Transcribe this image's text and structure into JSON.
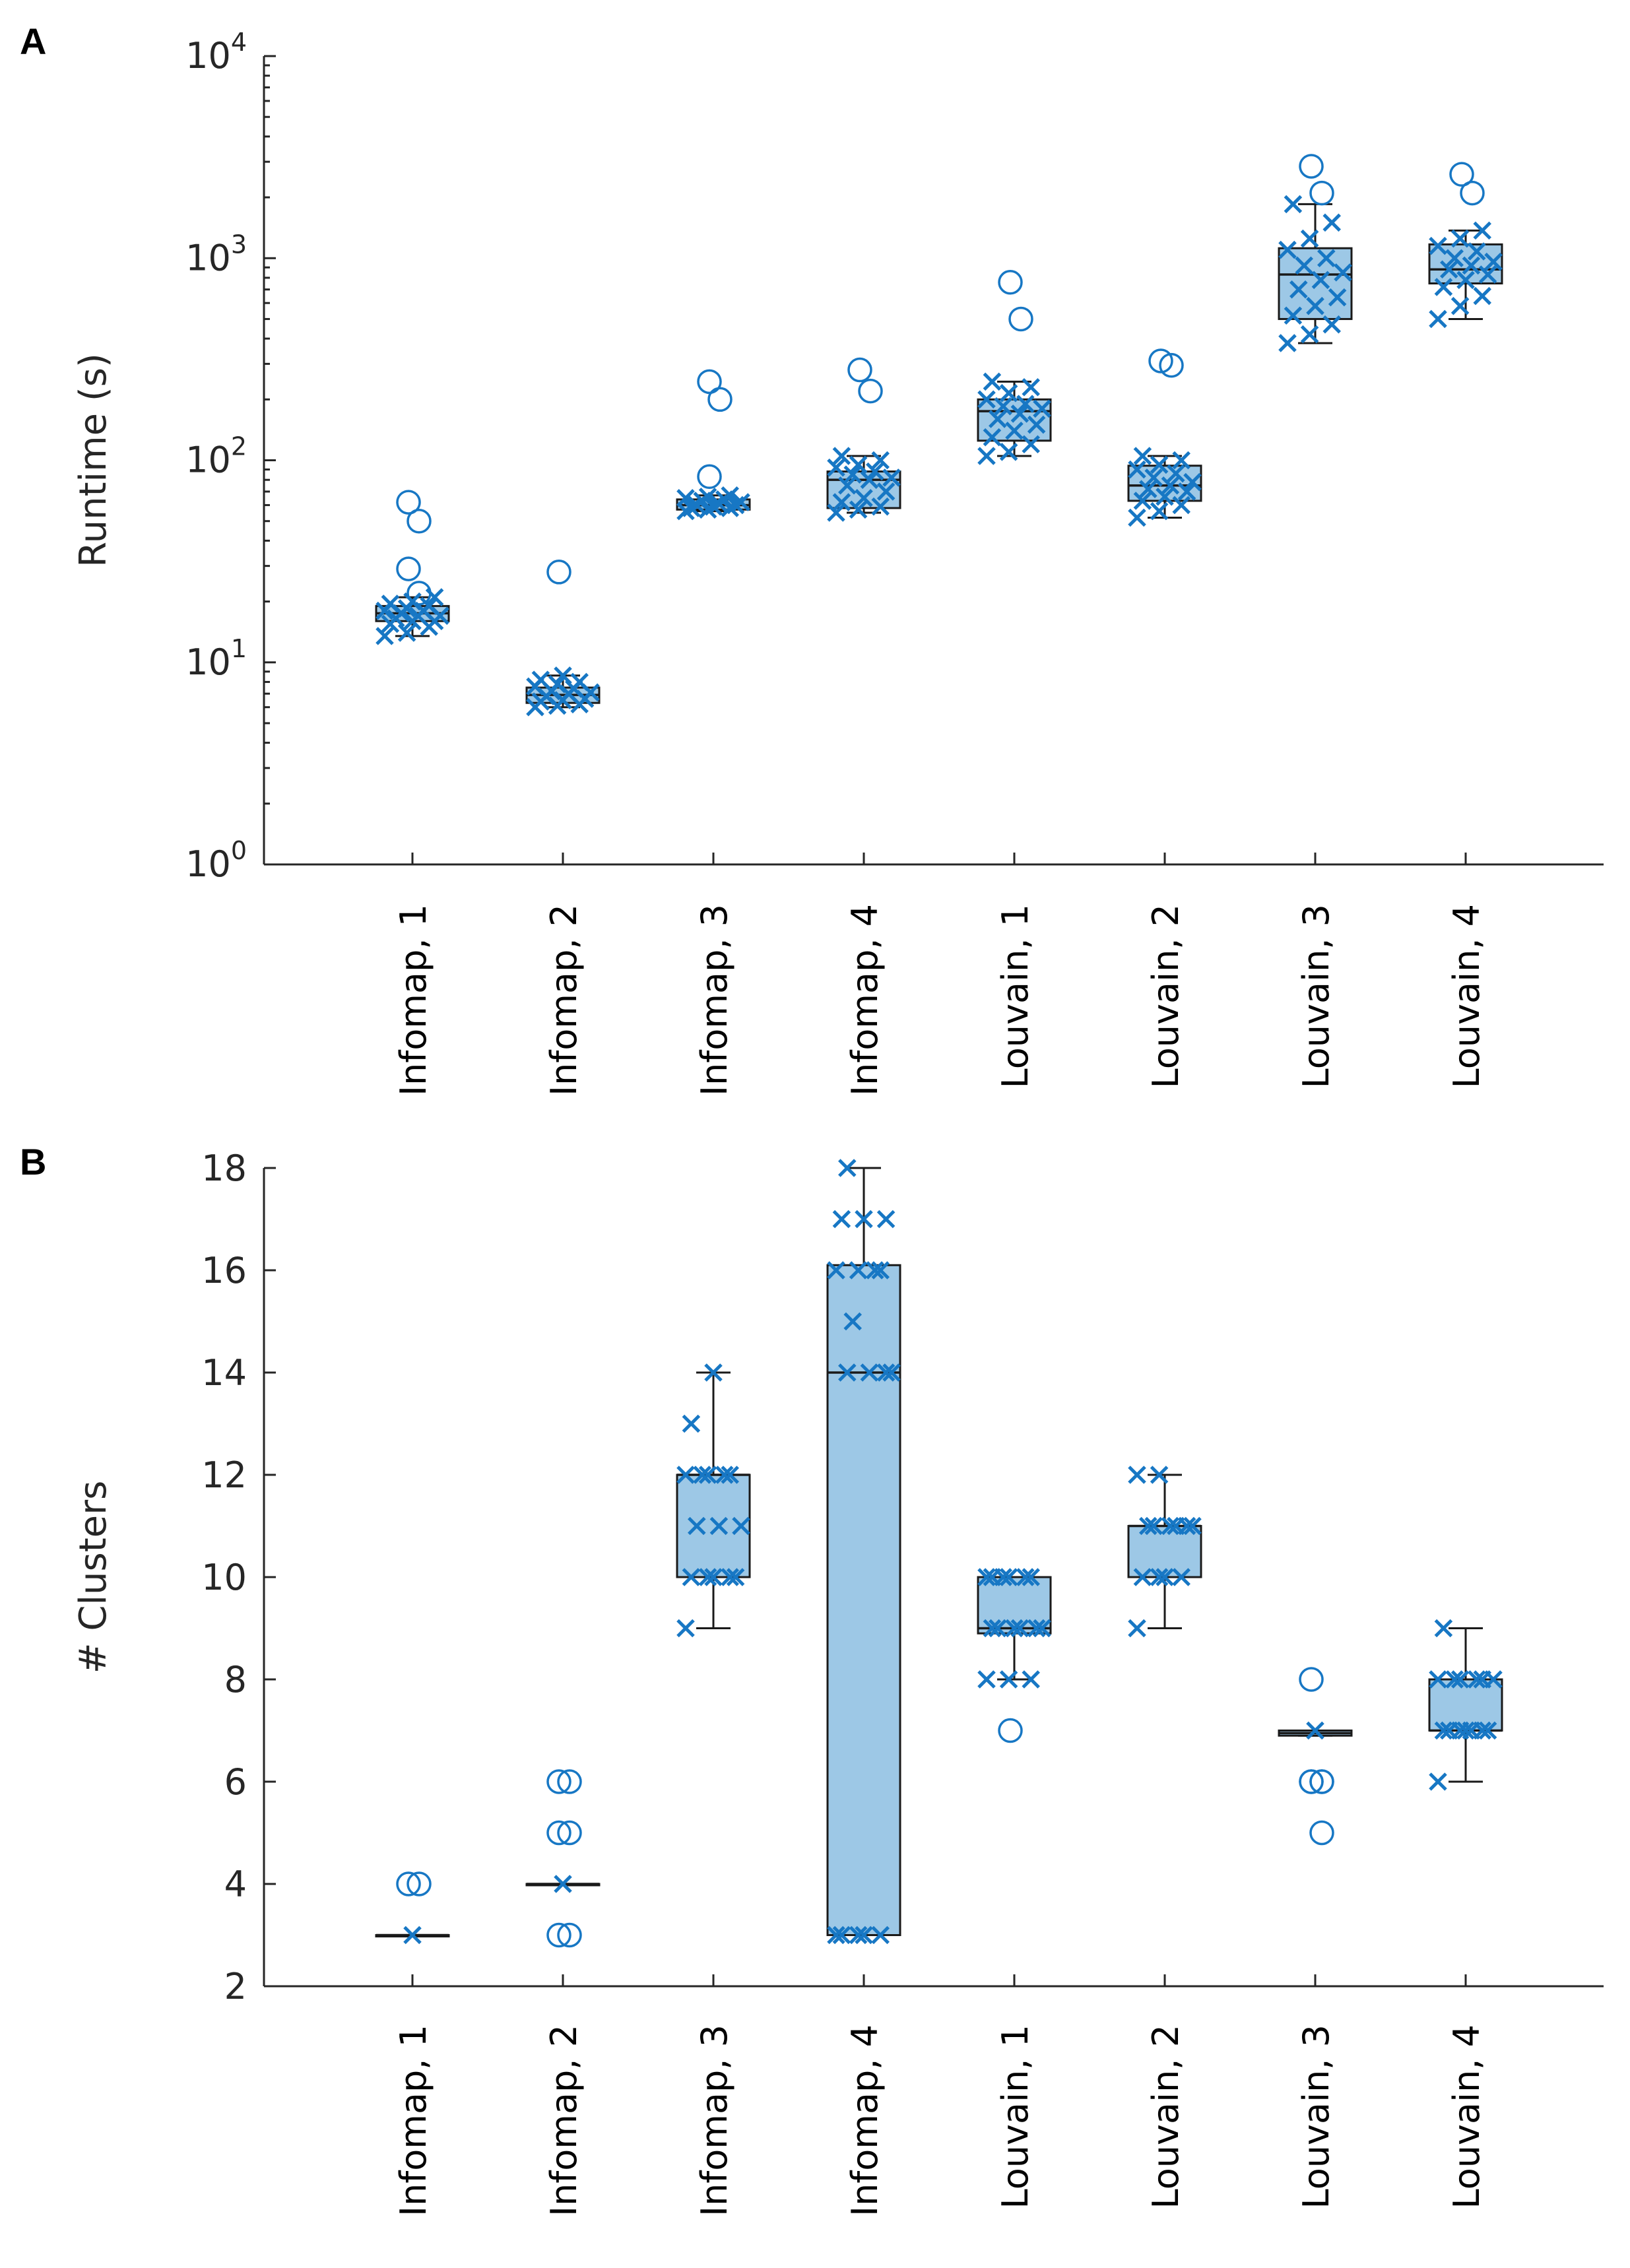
{
  "figure": {
    "colors": {
      "accent": "#1777c4",
      "box_fill": "#9dc8e6",
      "axis": "#262626"
    }
  },
  "chart_data": [
    {
      "panel": "A",
      "type": "box",
      "ylabel": "Runtime (s)",
      "yscale": "log",
      "ylim": [
        1,
        10000
      ],
      "yticks": [
        {
          "value": 1,
          "base": "10",
          "exp": "0"
        },
        {
          "value": 10,
          "base": "10",
          "exp": "1"
        },
        {
          "value": 100,
          "base": "10",
          "exp": "2"
        },
        {
          "value": 1000,
          "base": "10",
          "exp": "3"
        },
        {
          "value": 10000,
          "base": "10",
          "exp": "4"
        }
      ],
      "categories": [
        "Infomap, 1",
        "Infomap, 2",
        "Infomap, 3",
        "Infomap, 4",
        "Louvain, 1",
        "Louvain, 2",
        "Louvain, 3",
        "Louvain, 4"
      ],
      "boxes": [
        {
          "q1": 16,
          "median": 17.5,
          "q3": 19,
          "whisker_low": 13.5,
          "whisker_high": 21,
          "outliers": [
            62,
            50,
            29,
            22
          ],
          "points": [
            13.5,
            14,
            15,
            15.5,
            16,
            16,
            16.5,
            17,
            17,
            17.5,
            18,
            18,
            18.5,
            19,
            19.5,
            20,
            21
          ]
        },
        {
          "q1": 6.3,
          "median": 6.9,
          "q3": 7.5,
          "whisker_low": 6,
          "whisker_high": 8.6,
          "outliers": [
            28
          ],
          "points": [
            6,
            6.1,
            6.2,
            6.4,
            6.5,
            6.6,
            6.8,
            7,
            7.1,
            7.2,
            7.4,
            7.6,
            7.8,
            8,
            8.2,
            8.6
          ]
        },
        {
          "q1": 57,
          "median": 60,
          "q3": 64,
          "whisker_low": 56,
          "whisker_high": 67,
          "outliers": [
            245,
            200,
            83
          ],
          "points": [
            56,
            57,
            58,
            58,
            59,
            60,
            60,
            61,
            62,
            63,
            64,
            65,
            66,
            67
          ]
        },
        {
          "q1": 58,
          "median": 80,
          "q3": 88,
          "whisker_low": 55,
          "whisker_high": 105,
          "outliers": [
            280,
            220
          ],
          "points": [
            55,
            57,
            59,
            62,
            65,
            70,
            75,
            80,
            82,
            85,
            88,
            92,
            95,
            100,
            105
          ]
        },
        {
          "q1": 125,
          "median": 175,
          "q3": 200,
          "whisker_low": 105,
          "whisker_high": 245,
          "outliers": [
            760,
            500
          ],
          "points": [
            105,
            110,
            120,
            130,
            140,
            150,
            160,
            170,
            180,
            185,
            190,
            200,
            215,
            230,
            245
          ]
        },
        {
          "q1": 63,
          "median": 75,
          "q3": 94,
          "whisker_low": 52,
          "whisker_high": 105,
          "outliers": [
            310,
            295
          ],
          "points": [
            52,
            56,
            60,
            63,
            66,
            70,
            72,
            75,
            78,
            82,
            86,
            90,
            95,
            100,
            105
          ]
        },
        {
          "q1": 500,
          "median": 830,
          "q3": 1120,
          "whisker_low": 380,
          "whisker_high": 1850,
          "outliers": [
            2850,
            2100
          ],
          "points": [
            380,
            420,
            470,
            520,
            580,
            640,
            700,
            780,
            850,
            920,
            1000,
            1100,
            1250,
            1500,
            1850
          ]
        },
        {
          "q1": 750,
          "median": 880,
          "q3": 1170,
          "whisker_low": 500,
          "whisker_high": 1370,
          "outliers": [
            2600,
            2100
          ],
          "points": [
            500,
            580,
            650,
            720,
            780,
            830,
            880,
            920,
            960,
            1000,
            1080,
            1150,
            1250,
            1370
          ]
        }
      ]
    },
    {
      "panel": "B",
      "type": "box",
      "ylabel": "# Clusters",
      "yscale": "linear",
      "ylim": [
        2,
        18
      ],
      "yticks": [
        {
          "value": 2,
          "label": "2"
        },
        {
          "value": 4,
          "label": "4"
        },
        {
          "value": 6,
          "label": "6"
        },
        {
          "value": 8,
          "label": "8"
        },
        {
          "value": 10,
          "label": "10"
        },
        {
          "value": 12,
          "label": "12"
        },
        {
          "value": 14,
          "label": "14"
        },
        {
          "value": 16,
          "label": "16"
        },
        {
          "value": 18,
          "label": "18"
        }
      ],
      "categories": [
        "Infomap, 1",
        "Infomap, 2",
        "Infomap, 3",
        "Infomap, 4",
        "Louvain, 1",
        "Louvain, 2",
        "Louvain, 3",
        "Louvain, 4"
      ],
      "boxes": [
        {
          "q1": 3,
          "median": 3,
          "q3": 3,
          "whisker_low": 3,
          "whisker_high": 3,
          "outliers": [
            4,
            4
          ],
          "points": [
            3
          ]
        },
        {
          "q1": 4,
          "median": 4,
          "q3": 4,
          "whisker_low": 4,
          "whisker_high": 4,
          "outliers": [
            6,
            6,
            5,
            5,
            3,
            3
          ],
          "points": [
            4
          ]
        },
        {
          "q1": 10,
          "median": 12,
          "q3": 12,
          "whisker_low": 9,
          "whisker_high": 14,
          "outliers": [],
          "points": [
            9,
            10,
            10,
            10,
            10,
            10,
            11,
            11,
            11,
            12,
            12,
            12,
            12,
            12,
            13,
            14
          ]
        },
        {
          "q1": 3,
          "median": 14,
          "q3": 16.1,
          "whisker_low": 3,
          "whisker_high": 18,
          "outliers": [],
          "points": [
            3,
            3,
            3,
            3,
            3,
            14,
            14,
            14,
            14,
            15,
            16,
            16,
            16,
            16,
            17,
            17,
            17,
            18
          ]
        },
        {
          "q1": 8.9,
          "median": 9,
          "q3": 10,
          "whisker_low": 8,
          "whisker_high": 10,
          "outliers": [
            7
          ],
          "points": [
            8,
            8,
            8,
            9,
            9,
            9,
            9,
            9,
            9,
            10,
            10,
            10,
            10,
            10,
            10
          ]
        },
        {
          "q1": 10,
          "median": 11,
          "q3": 11,
          "whisker_low": 9,
          "whisker_high": 12,
          "outliers": [],
          "points": [
            9,
            10,
            10,
            10,
            10,
            11,
            11,
            11,
            11,
            11,
            11,
            12,
            12
          ]
        },
        {
          "q1": 6.9,
          "median": 6.95,
          "q3": 7,
          "whisker_low": 6.9,
          "whisker_high": 7,
          "outliers": [
            8,
            6,
            6,
            6,
            6,
            5
          ],
          "points": [
            7
          ]
        },
        {
          "q1": 7,
          "median": 7,
          "q3": 8,
          "whisker_low": 6,
          "whisker_high": 9,
          "outliers": [],
          "points": [
            6,
            7,
            7,
            7,
            7,
            7,
            7,
            7,
            8,
            8,
            8,
            8,
            8,
            8,
            9
          ]
        }
      ]
    }
  ]
}
